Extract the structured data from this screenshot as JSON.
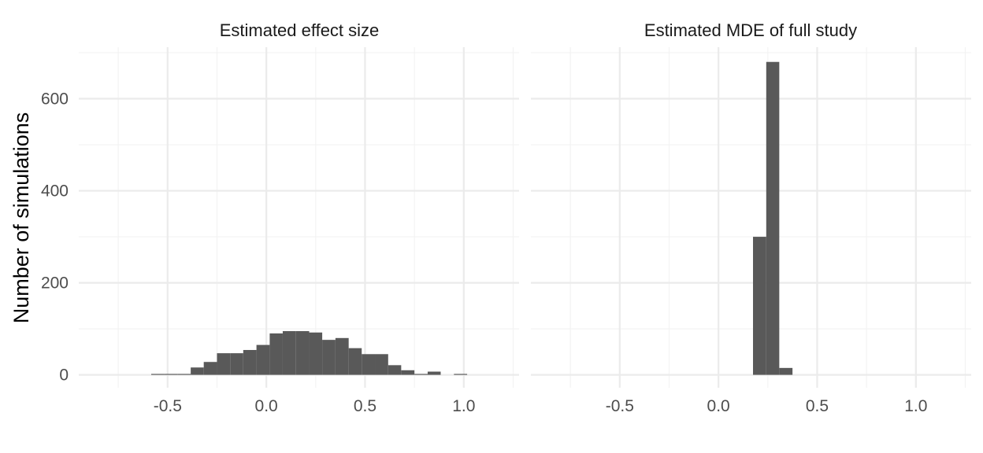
{
  "colors": {
    "bar": "#595959",
    "grid_major": "#ebebeb",
    "grid_minor": "#f3f3f3",
    "background": "#ffffff"
  },
  "chart_data": {
    "type": "bar",
    "histogram": true,
    "ylabel": "Number of simulations",
    "xlabel": "",
    "xlim": [
      -0.95,
      1.28
    ],
    "ylim": [
      -28,
      712
    ],
    "x_ticks": [
      -0.5,
      0.0,
      0.5,
      1.0
    ],
    "x_tick_labels": [
      "-0.5",
      "0.0",
      "0.5",
      "1.0"
    ],
    "y_ticks": [
      0,
      200,
      400,
      600
    ],
    "y_tick_labels": [
      "0",
      "200",
      "400",
      "600"
    ],
    "grid": true,
    "legend": "none",
    "panels": [
      {
        "title": "Estimated effect size",
        "bin_width": 0.0667,
        "bars": [
          {
            "x0": -0.583,
            "x1": -0.517,
            "count": 2
          },
          {
            "x0": -0.517,
            "x1": -0.45,
            "count": 2
          },
          {
            "x0": -0.45,
            "x1": -0.383,
            "count": 2
          },
          {
            "x0": -0.383,
            "x1": -0.317,
            "count": 16
          },
          {
            "x0": -0.317,
            "x1": -0.25,
            "count": 28
          },
          {
            "x0": -0.25,
            "x1": -0.183,
            "count": 47
          },
          {
            "x0": -0.183,
            "x1": -0.117,
            "count": 47
          },
          {
            "x0": -0.117,
            "x1": -0.05,
            "count": 54
          },
          {
            "x0": -0.05,
            "x1": 0.017,
            "count": 65
          },
          {
            "x0": 0.017,
            "x1": 0.083,
            "count": 90
          },
          {
            "x0": 0.083,
            "x1": 0.15,
            "count": 95
          },
          {
            "x0": 0.15,
            "x1": 0.217,
            "count": 95
          },
          {
            "x0": 0.217,
            "x1": 0.283,
            "count": 92
          },
          {
            "x0": 0.283,
            "x1": 0.35,
            "count": 76
          },
          {
            "x0": 0.35,
            "x1": 0.417,
            "count": 80
          },
          {
            "x0": 0.417,
            "x1": 0.483,
            "count": 58
          },
          {
            "x0": 0.483,
            "x1": 0.55,
            "count": 45
          },
          {
            "x0": 0.55,
            "x1": 0.617,
            "count": 45
          },
          {
            "x0": 0.617,
            "x1": 0.683,
            "count": 21
          },
          {
            "x0": 0.683,
            "x1": 0.75,
            "count": 10
          },
          {
            "x0": 0.75,
            "x1": 0.817,
            "count": 2
          },
          {
            "x0": 0.817,
            "x1": 0.883,
            "count": 7
          },
          {
            "x0": 0.95,
            "x1": 1.017,
            "count": 2
          }
        ]
      },
      {
        "title": "Estimated MDE of full study",
        "bin_width": 0.0667,
        "bars": [
          {
            "x0": 0.175,
            "x1": 0.242,
            "count": 300
          },
          {
            "x0": 0.242,
            "x1": 0.308,
            "count": 680
          },
          {
            "x0": 0.308,
            "x1": 0.375,
            "count": 15
          }
        ]
      }
    ]
  }
}
